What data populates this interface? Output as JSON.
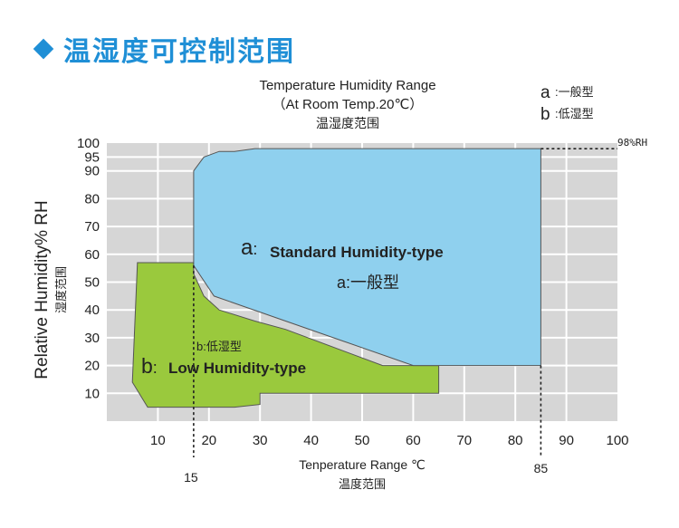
{
  "heading": "温湿度可控制范围",
  "chart_data": {
    "type": "area",
    "title": "Temperature Humidity Range",
    "subtitle": "（At Room Temp.20℃）",
    "title_cn": "温湿度范围",
    "xlabel": "Tenperature Range ℃",
    "xlabel_cn": "温度范围",
    "ylabel": "Relative Humidity% RH",
    "ylabel_cn": "湿度范围",
    "xlim": [
      0,
      100
    ],
    "ylim": [
      0,
      100
    ],
    "x_ticks": [
      10,
      20,
      30,
      40,
      50,
      60,
      70,
      80,
      90,
      100
    ],
    "y_ticks": [
      10,
      20,
      30,
      40,
      50,
      60,
      70,
      80,
      90,
      95,
      100
    ],
    "grid": true,
    "legend": [
      {
        "key": "a",
        "label": ":一般型"
      },
      {
        "key": "b",
        "label": ":低湿型"
      }
    ],
    "regions": [
      {
        "id": "a",
        "label": "Standard Humidity-type",
        "label_cn": "一般型",
        "color": "#8fd0ee",
        "points": [
          [
            17,
            90
          ],
          [
            19,
            95
          ],
          [
            22,
            97
          ],
          [
            25,
            97
          ],
          [
            29,
            98
          ],
          [
            35,
            98
          ],
          [
            85,
            98
          ],
          [
            85,
            20
          ],
          [
            60,
            20
          ],
          [
            21,
            45
          ],
          [
            17,
            56
          ]
        ]
      },
      {
        "id": "b",
        "label": "Low Humidity-type",
        "label_cn": "低湿型",
        "color": "#9ac93d",
        "points": [
          [
            6,
            57
          ],
          [
            17,
            57
          ],
          [
            17,
            53
          ],
          [
            19,
            45
          ],
          [
            22,
            40
          ],
          [
            29,
            36
          ],
          [
            35,
            33
          ],
          [
            54,
            20
          ],
          [
            65,
            20
          ],
          [
            65,
            10
          ],
          [
            30,
            10
          ],
          [
            30,
            6
          ],
          [
            25,
            5
          ],
          [
            8,
            5
          ],
          [
            5,
            14
          ]
        ]
      }
    ],
    "annotations": [
      {
        "text": "98%RH",
        "x": 85,
        "y": 98
      },
      {
        "text": "15",
        "x": 15,
        "y": 0
      },
      {
        "text": "85",
        "x": 85,
        "y": 0
      }
    ],
    "region_labels": [
      {
        "region": "a",
        "text": "a",
        "text_en": "Standard Humidity-type",
        "text_cn": "a:一般型"
      },
      {
        "region": "b",
        "text": "b",
        "text_en": "Low Humidity-type",
        "text_cn": "b:低湿型"
      }
    ]
  }
}
